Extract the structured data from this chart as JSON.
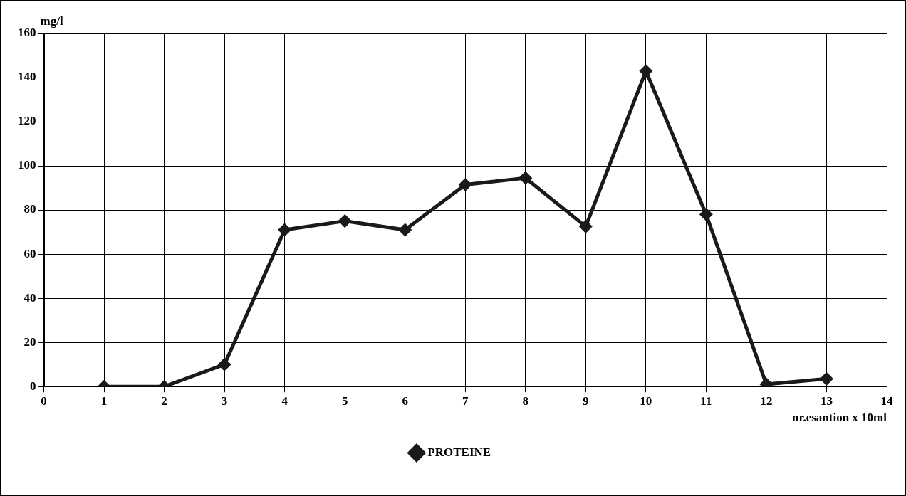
{
  "chart_data": {
    "type": "line",
    "xlabel": "nr.esantion x 10ml",
    "ylabel": "mg/l",
    "x": [
      1,
      2,
      3,
      4,
      5,
      6,
      7,
      8,
      9,
      10,
      11,
      12,
      13
    ],
    "series": [
      {
        "name": "PROTEINE",
        "color": "#1a1a1a",
        "values": [
          0,
          0,
          10,
          71,
          75,
          71,
          91.5,
          94.5,
          72.5,
          143,
          78,
          1,
          3.5
        ]
      }
    ],
    "xlim": [
      0,
      14
    ],
    "xticks": [
      0,
      1,
      2,
      3,
      4,
      5,
      6,
      7,
      8,
      9,
      10,
      11,
      12,
      13,
      14
    ],
    "ylim": [
      0,
      160
    ],
    "yticks": [
      0,
      20,
      40,
      60,
      80,
      100,
      120,
      140,
      160
    ],
    "grid": true,
    "legend": "bottom",
    "marker": "diamond",
    "line_style": "solid"
  }
}
